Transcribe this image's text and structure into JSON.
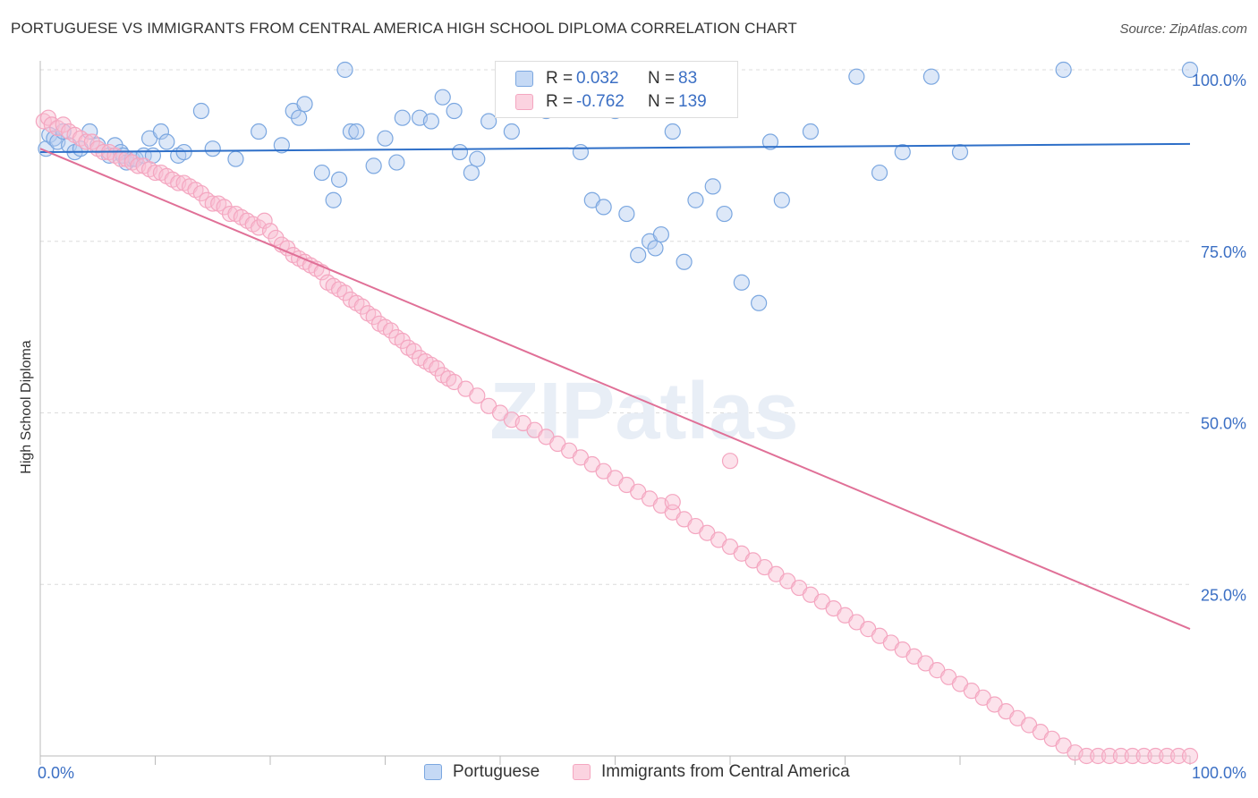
{
  "header": {
    "title": "PORTUGUESE VS IMMIGRANTS FROM CENTRAL AMERICA HIGH SCHOOL DIPLOMA CORRELATION CHART",
    "source": "Source: ZipAtlas.com"
  },
  "watermark": "ZIPatlas",
  "legend_stats": [
    {
      "r_label": "R =",
      "r_value": "0.032",
      "n_label": "N =",
      "n_value": "83"
    },
    {
      "r_label": "R =",
      "r_value": "-0.762",
      "n_label": "N =",
      "n_value": "139"
    }
  ],
  "chart_data": {
    "type": "scatter",
    "title": "PORTUGUESE VS IMMIGRANTS FROM CENTRAL AMERICA HIGH SCHOOL DIPLOMA CORRELATION CHART",
    "xlabel": "",
    "ylabel": "High School Diploma",
    "xlim": [
      0,
      100
    ],
    "ylim": [
      0,
      100
    ],
    "x_tick_labels": [
      "0.0%",
      "100.0%"
    ],
    "y_tick_labels": [
      "25.0%",
      "50.0%",
      "75.0%",
      "100.0%"
    ],
    "y_ticks": [
      25,
      50,
      75,
      100
    ],
    "grid": true,
    "legend_position": "bottom",
    "series": [
      {
        "name": "Portuguese",
        "color": "#7ba7e0",
        "trend_color": "#2e6fc8",
        "trend": {
          "x0": 0,
          "y0": 88.0,
          "x1": 100,
          "y1": 89.2
        },
        "points": [
          [
            0.5,
            88.5
          ],
          [
            0.8,
            90.5
          ],
          [
            1.2,
            90.0
          ],
          [
            1.5,
            89.5
          ],
          [
            2.0,
            91.0
          ],
          [
            2.5,
            89.0
          ],
          [
            3.0,
            88.0
          ],
          [
            3.5,
            88.5
          ],
          [
            4.3,
            91.0
          ],
          [
            5.0,
            89.0
          ],
          [
            6.0,
            87.5
          ],
          [
            6.5,
            89.0
          ],
          [
            7.0,
            88.0
          ],
          [
            7.2,
            87.5
          ],
          [
            7.5,
            86.5
          ],
          [
            8.0,
            87.0
          ],
          [
            8.3,
            87.0
          ],
          [
            9.0,
            87.5
          ],
          [
            9.5,
            90.0
          ],
          [
            9.8,
            87.5
          ],
          [
            10.5,
            91.0
          ],
          [
            11.0,
            89.5
          ],
          [
            12.0,
            87.5
          ],
          [
            12.5,
            88.0
          ],
          [
            14.0,
            94.0
          ],
          [
            15.0,
            88.5
          ],
          [
            17.0,
            87.0
          ],
          [
            19.0,
            91.0
          ],
          [
            21.0,
            89.0
          ],
          [
            22.0,
            94.0
          ],
          [
            22.5,
            93.0
          ],
          [
            23.0,
            95.0
          ],
          [
            24.5,
            85.0
          ],
          [
            25.5,
            81.0
          ],
          [
            26.0,
            84.0
          ],
          [
            27.0,
            91.0
          ],
          [
            27.5,
            91.0
          ],
          [
            29.0,
            86.0
          ],
          [
            30.0,
            90.0
          ],
          [
            31.0,
            86.5
          ],
          [
            31.5,
            93.0
          ],
          [
            33.0,
            93.0
          ],
          [
            34.0,
            92.5
          ],
          [
            35.0,
            96.0
          ],
          [
            36.0,
            94.0
          ],
          [
            36.5,
            88.0
          ],
          [
            37.5,
            85.0
          ],
          [
            38.0,
            87.0
          ],
          [
            39.0,
            92.5
          ],
          [
            41.0,
            91.0
          ],
          [
            42.0,
            97.0
          ],
          [
            42.5,
            96.0
          ],
          [
            43.0,
            98.0
          ],
          [
            44.0,
            94.0
          ],
          [
            45.0,
            98.5
          ],
          [
            46.0,
            97.0
          ],
          [
            47.0,
            88.0
          ],
          [
            48.0,
            81.0
          ],
          [
            49.0,
            80.0
          ],
          [
            50.0,
            94.0
          ],
          [
            51.0,
            79.0
          ],
          [
            52.0,
            73.0
          ],
          [
            53.0,
            75.0
          ],
          [
            53.5,
            74.0
          ],
          [
            54.0,
            76.0
          ],
          [
            55.0,
            91.0
          ],
          [
            56.0,
            72.0
          ],
          [
            57.0,
            81.0
          ],
          [
            58.5,
            83.0
          ],
          [
            59.5,
            79.0
          ],
          [
            61.0,
            69.0
          ],
          [
            62.5,
            66.0
          ],
          [
            63.5,
            89.5
          ],
          [
            64.5,
            81.0
          ],
          [
            67.0,
            91.0
          ],
          [
            71.0,
            99.0
          ],
          [
            73.0,
            85.0
          ],
          [
            75.0,
            88.0
          ],
          [
            77.5,
            99.0
          ],
          [
            80.0,
            88.0
          ],
          [
            89.0,
            100.0
          ],
          [
            100.0,
            100.0
          ],
          [
            26.5,
            100.0
          ]
        ]
      },
      {
        "name": "Immigrants from Central America",
        "color": "#f4a6c0",
        "trend_color": "#e07097",
        "trend": {
          "x0": 0,
          "y0": 88.5,
          "x1": 100,
          "y1": 18.5
        },
        "points": [
          [
            0.3,
            92.5
          ],
          [
            0.7,
            93.0
          ],
          [
            1.0,
            92.0
          ],
          [
            1.5,
            91.5
          ],
          [
            2.0,
            92.0
          ],
          [
            2.5,
            91.0
          ],
          [
            3.0,
            90.5
          ],
          [
            3.5,
            90.0
          ],
          [
            4.0,
            89.5
          ],
          [
            4.5,
            89.5
          ],
          [
            5.0,
            88.5
          ],
          [
            5.5,
            88.0
          ],
          [
            6.0,
            88.0
          ],
          [
            6.5,
            87.5
          ],
          [
            7.0,
            87.0
          ],
          [
            7.5,
            87.0
          ],
          [
            8.0,
            86.5
          ],
          [
            8.5,
            86.0
          ],
          [
            9.0,
            86.0
          ],
          [
            9.5,
            85.5
          ],
          [
            10.0,
            85.0
          ],
          [
            10.5,
            85.0
          ],
          [
            11.0,
            84.5
          ],
          [
            11.5,
            84.0
          ],
          [
            12.0,
            83.5
          ],
          [
            12.5,
            83.5
          ],
          [
            13.0,
            83.0
          ],
          [
            13.5,
            82.5
          ],
          [
            14.0,
            82.0
          ],
          [
            14.5,
            81.0
          ],
          [
            15.0,
            80.5
          ],
          [
            15.5,
            80.5
          ],
          [
            16.0,
            80.0
          ],
          [
            16.5,
            79.0
          ],
          [
            17.0,
            79.0
          ],
          [
            17.5,
            78.5
          ],
          [
            18.0,
            78.0
          ],
          [
            18.5,
            77.5
          ],
          [
            19.0,
            77.0
          ],
          [
            19.5,
            78.0
          ],
          [
            20.0,
            76.5
          ],
          [
            20.5,
            75.5
          ],
          [
            21.0,
            74.5
          ],
          [
            21.5,
            74.0
          ],
          [
            22.0,
            73.0
          ],
          [
            22.5,
            72.5
          ],
          [
            23.0,
            72.0
          ],
          [
            23.5,
            71.5
          ],
          [
            24.0,
            71.0
          ],
          [
            24.5,
            70.5
          ],
          [
            25.0,
            69.0
          ],
          [
            25.5,
            68.5
          ],
          [
            26.0,
            68.0
          ],
          [
            26.5,
            67.5
          ],
          [
            27.0,
            66.5
          ],
          [
            27.5,
            66.0
          ],
          [
            28.0,
            65.5
          ],
          [
            28.5,
            64.5
          ],
          [
            29.0,
            64.0
          ],
          [
            29.5,
            63.0
          ],
          [
            30.0,
            62.5
          ],
          [
            30.5,
            62.0
          ],
          [
            31.0,
            61.0
          ],
          [
            31.5,
            60.5
          ],
          [
            32.0,
            59.5
          ],
          [
            32.5,
            59.0
          ],
          [
            33.0,
            58.0
          ],
          [
            33.5,
            57.5
          ],
          [
            34.0,
            57.0
          ],
          [
            34.5,
            56.5
          ],
          [
            35.0,
            55.5
          ],
          [
            35.5,
            55.0
          ],
          [
            36.0,
            54.5
          ],
          [
            37.0,
            53.5
          ],
          [
            38.0,
            52.5
          ],
          [
            39.0,
            51.0
          ],
          [
            40.0,
            50.0
          ],
          [
            41.0,
            49.0
          ],
          [
            42.0,
            48.5
          ],
          [
            43.0,
            47.5
          ],
          [
            44.0,
            46.5
          ],
          [
            45.0,
            45.5
          ],
          [
            46.0,
            44.5
          ],
          [
            47.0,
            43.5
          ],
          [
            48.0,
            42.5
          ],
          [
            49.0,
            41.5
          ],
          [
            50.0,
            40.5
          ],
          [
            51.0,
            39.5
          ],
          [
            52.0,
            38.5
          ],
          [
            53.0,
            37.5
          ],
          [
            54.0,
            36.5
          ],
          [
            55.0,
            35.5
          ],
          [
            56.0,
            34.5
          ],
          [
            57.0,
            33.5
          ],
          [
            58.0,
            32.5
          ],
          [
            59.0,
            31.5
          ],
          [
            60.0,
            30.5
          ],
          [
            61.0,
            29.5
          ],
          [
            62.0,
            28.5
          ],
          [
            63.0,
            27.5
          ],
          [
            64.0,
            26.5
          ],
          [
            65.0,
            25.5
          ],
          [
            66.0,
            24.5
          ],
          [
            67.0,
            23.5
          ],
          [
            68.0,
            22.5
          ],
          [
            69.0,
            21.5
          ],
          [
            70.0,
            20.5
          ],
          [
            71.0,
            19.5
          ],
          [
            72.0,
            18.5
          ],
          [
            73.0,
            17.5
          ],
          [
            74.0,
            16.5
          ],
          [
            75.0,
            15.5
          ],
          [
            76.0,
            14.5
          ],
          [
            77.0,
            13.5
          ],
          [
            78.0,
            12.5
          ],
          [
            79.0,
            11.5
          ],
          [
            80.0,
            10.5
          ],
          [
            81.0,
            9.5
          ],
          [
            82.0,
            8.5
          ],
          [
            83.0,
            7.5
          ],
          [
            84.0,
            6.5
          ],
          [
            85.0,
            5.5
          ],
          [
            86.0,
            4.5
          ],
          [
            87.0,
            3.5
          ],
          [
            88.0,
            2.5
          ],
          [
            89.0,
            1.5
          ],
          [
            90.0,
            0.5
          ],
          [
            91.0,
            0.0
          ],
          [
            92.0,
            0.0
          ],
          [
            93.0,
            0.0
          ],
          [
            94.0,
            0.0
          ],
          [
            95.0,
            0.0
          ],
          [
            96.0,
            0.0
          ],
          [
            97.0,
            0.0
          ],
          [
            98.0,
            0.0
          ],
          [
            99.0,
            0.0
          ],
          [
            100.0,
            0.0
          ],
          [
            55.0,
            37.0
          ],
          [
            60.0,
            43.0
          ]
        ]
      }
    ]
  },
  "bottom_legend": [
    {
      "label": "Portuguese"
    },
    {
      "label": "Immigrants from Central America"
    }
  ]
}
